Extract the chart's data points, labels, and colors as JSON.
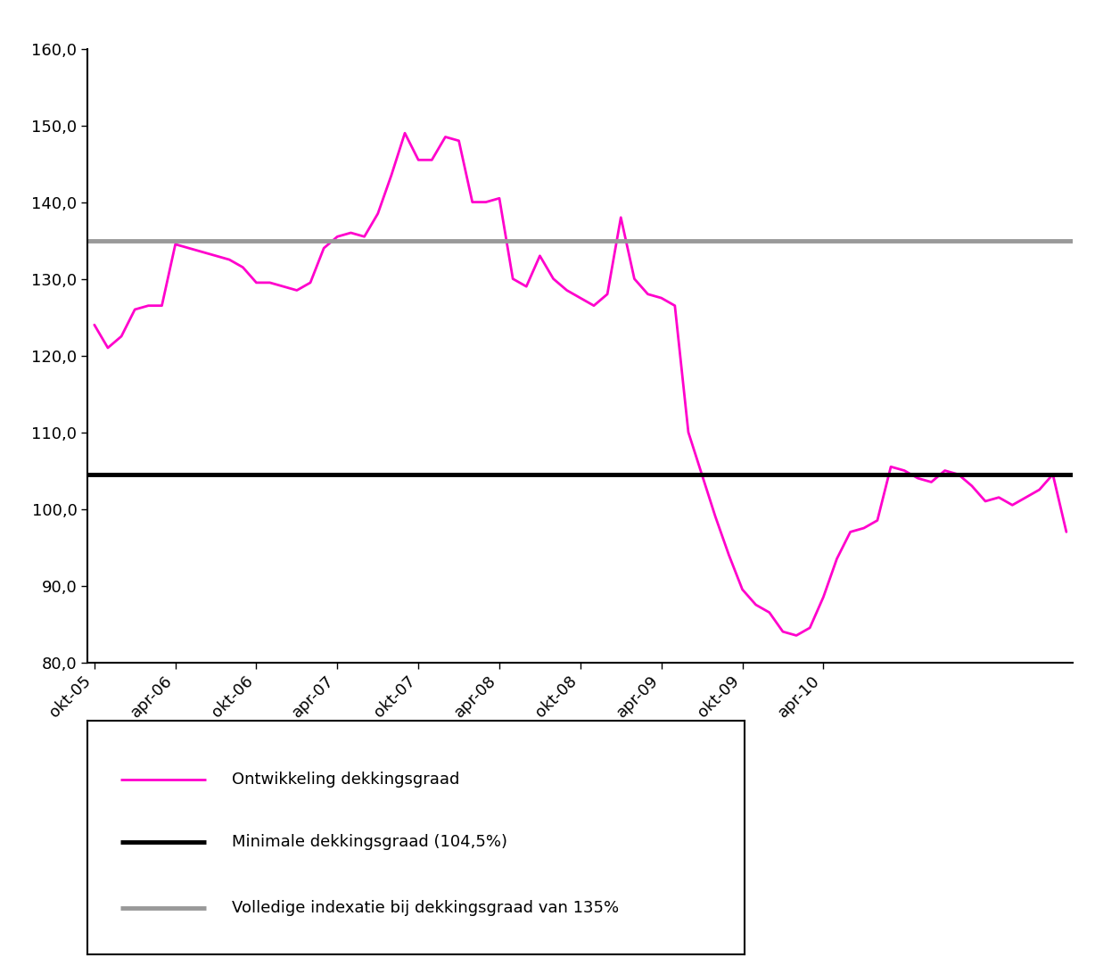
{
  "ylim": [
    80.0,
    160.0
  ],
  "yticks": [
    80.0,
    90.0,
    100.0,
    110.0,
    120.0,
    130.0,
    140.0,
    150.0,
    160.0
  ],
  "hline_min": 104.5,
  "hline_min_color": "#000000",
  "hline_min_label": "Minimale dekkingsgraad (104,5%)",
  "hline_index": 135.0,
  "hline_index_color": "#999999",
  "hline_index_label": "Volledige indexatie bij dekkingsgraad van 135%",
  "line_color": "#FF00CC",
  "line_label": "Ontwikkeling dekkingsgraad",
  "x_labels": [
    "okt-05",
    "apr-06",
    "okt-06",
    "apr-07",
    "okt-07",
    "apr-08",
    "okt-08",
    "apr-09",
    "okt-09",
    "apr-10"
  ],
  "x_tick_indices": [
    0,
    6,
    12,
    18,
    24,
    30,
    36,
    42,
    48,
    54
  ],
  "values": [
    124.0,
    121.0,
    122.5,
    126.0,
    126.5,
    126.5,
    134.5,
    134.0,
    133.5,
    133.0,
    132.5,
    131.5,
    129.5,
    129.5,
    129.0,
    128.5,
    129.5,
    134.0,
    135.5,
    136.0,
    135.5,
    138.5,
    143.5,
    149.0,
    145.5,
    145.5,
    148.5,
    148.0,
    140.0,
    140.0,
    140.5,
    130.0,
    129.0,
    133.0,
    130.0,
    128.5,
    127.5,
    126.5,
    128.0,
    138.0,
    130.0,
    128.0,
    127.5,
    126.5,
    110.0,
    104.5,
    99.0,
    94.0,
    89.5,
    87.5,
    86.5,
    84.0,
    83.5,
    84.5,
    88.5,
    93.5,
    97.0,
    97.5,
    98.5,
    105.5,
    105.0,
    104.0,
    103.5,
    105.0,
    104.5,
    103.0,
    101.0,
    101.5,
    100.5,
    101.5,
    102.5,
    104.5,
    97.0
  ]
}
